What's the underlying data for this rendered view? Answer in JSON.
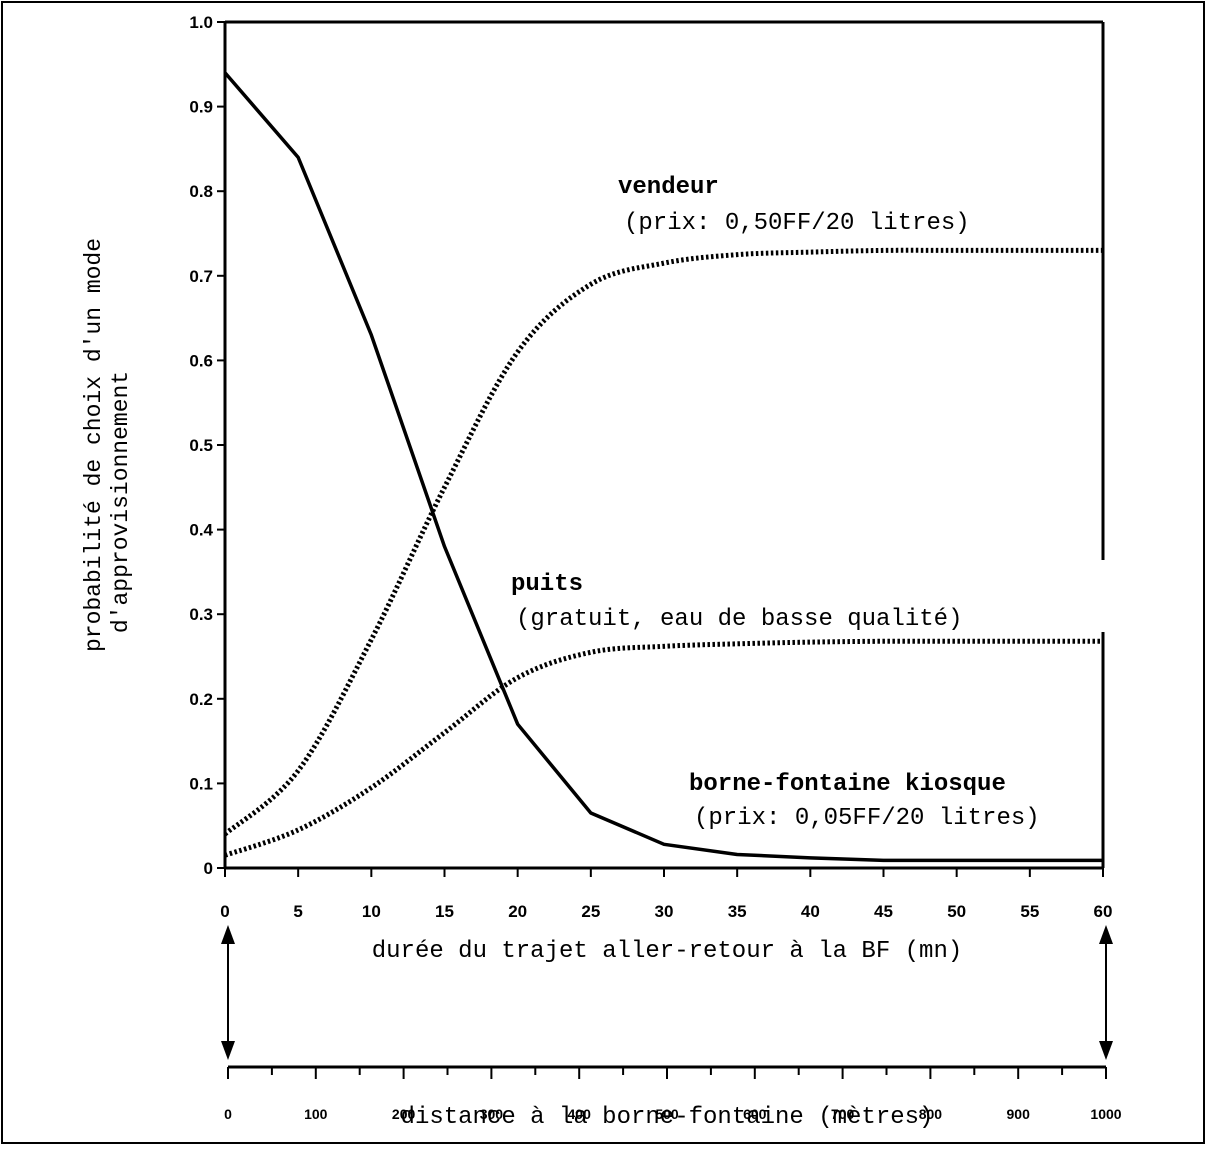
{
  "chart_data": {
    "type": "line",
    "ylabel_lines": [
      "probabilité de choix d'un mode",
      "d'approvisionnement"
    ],
    "xlabel": "durée du trajet aller-retour à la BF (mn)",
    "xlabel2": "distance à la borne-fontaine (mètres)",
    "ylim": [
      0,
      1
    ],
    "xlim": [
      0,
      60
    ],
    "x2lim": [
      0,
      1000
    ],
    "y_ticks": [
      "1.0",
      "0.9",
      "0.8",
      "0.7",
      "0.6",
      "0.5",
      "0.4",
      "0.3",
      "0.2",
      "0.1",
      "0"
    ],
    "x_ticks": [
      "0",
      "5",
      "10",
      "15",
      "20",
      "25",
      "30",
      "35",
      "40",
      "45",
      "50",
      "55",
      "60"
    ],
    "x2_ticks": [
      "0",
      "100",
      "200",
      "300",
      "400",
      "500",
      "600",
      "700",
      "800",
      "900",
      "1000"
    ],
    "series": [
      {
        "name": "borne-fontaine kiosque",
        "note": "(prix: 0,05FF/20 litres)",
        "style": "solid",
        "x": [
          0,
          5,
          10,
          15,
          20,
          25,
          30,
          35,
          40,
          45,
          50,
          55,
          60
        ],
        "y": [
          0.94,
          0.84,
          0.63,
          0.38,
          0.17,
          0.065,
          0.028,
          0.016,
          0.012,
          0.009,
          0.009,
          0.009,
          0.009
        ]
      },
      {
        "name": "vendeur",
        "note": "(prix: 0,50FF/20 litres)",
        "style": "dotted",
        "x": [
          0,
          5,
          10,
          15,
          20,
          25,
          30,
          35,
          40,
          45,
          50,
          55,
          60
        ],
        "y": [
          0.04,
          0.115,
          0.27,
          0.45,
          0.61,
          0.69,
          0.715,
          0.725,
          0.728,
          0.73,
          0.73,
          0.73,
          0.73
        ]
      },
      {
        "name": "puits",
        "note": "(gratuit, eau de basse qualité)",
        "style": "dotted",
        "x": [
          0,
          5,
          10,
          15,
          20,
          25,
          30,
          35,
          40,
          45,
          50,
          55,
          60
        ],
        "y": [
          0.015,
          0.045,
          0.095,
          0.16,
          0.225,
          0.255,
          0.262,
          0.265,
          0.267,
          0.268,
          0.268,
          0.268,
          0.268
        ]
      }
    ]
  }
}
